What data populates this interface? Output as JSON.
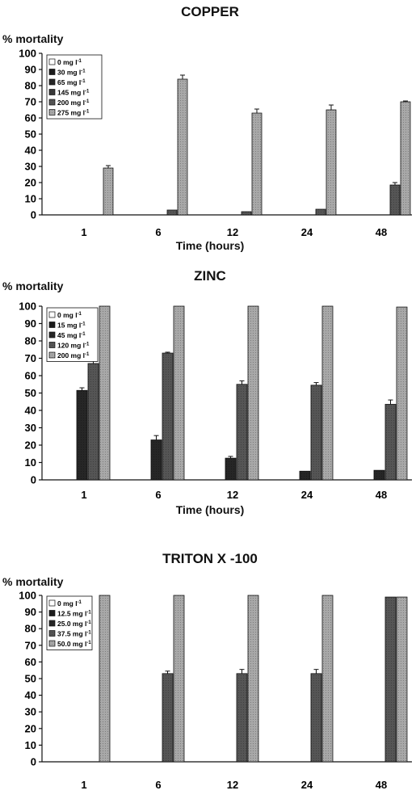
{
  "chart_data": [
    {
      "type": "bar",
      "title": "COPPER",
      "ylabel": "% mortality",
      "xlabel": "Time (hours)",
      "ylim": [
        0,
        100
      ],
      "yticks": [
        0,
        10,
        20,
        30,
        40,
        50,
        60,
        70,
        80,
        90,
        100
      ],
      "categories": [
        "1",
        "6",
        "12",
        "24",
        "48"
      ],
      "legend_position": "top-left",
      "series": [
        {
          "name": "0 mg l-1",
          "legend_label": "0 mg l",
          "sup": "-1",
          "color": "#ffffff",
          "values": [
            0,
            0,
            0,
            0,
            0
          ],
          "errors": [
            0,
            0,
            0,
            0,
            0
          ]
        },
        {
          "name": "30 mg l-1",
          "legend_label": "30 mg l",
          "sup": "-1",
          "color": "#1a1a1a",
          "values": [
            0,
            0,
            0,
            0,
            0
          ],
          "errors": [
            0,
            0,
            0,
            0,
            0
          ]
        },
        {
          "name": "65 mg l-1",
          "legend_label": "65 mg l",
          "sup": "-1",
          "color": "#262626",
          "values": [
            0,
            0,
            0,
            0,
            0
          ],
          "errors": [
            0,
            0,
            0,
            0,
            0
          ]
        },
        {
          "name": "145 mg l-1",
          "legend_label": "145 mg l",
          "sup": "-1",
          "color": "#3a3a3a",
          "values": [
            0,
            0,
            0,
            0,
            0
          ],
          "errors": [
            0,
            0,
            0,
            0,
            0
          ]
        },
        {
          "name": "200 mg l-1",
          "legend_label": "200 mg l",
          "sup": "-1",
          "color": "#555555",
          "values": [
            0,
            3,
            2,
            3.5,
            18.5
          ],
          "errors": [
            0,
            0,
            0,
            0,
            1.5
          ]
        },
        {
          "name": "275 mg l-1",
          "legend_label": "275 mg l",
          "sup": "-1",
          "color": "#a8a8a8",
          "values": [
            29,
            84,
            63,
            65,
            70
          ],
          "errors": [
            1.5,
            2.5,
            2.5,
            3,
            0.5
          ]
        }
      ]
    },
    {
      "type": "bar",
      "title": "ZINC",
      "ylabel": "% mortality",
      "xlabel": "Time (hours)",
      "ylim": [
        0,
        100
      ],
      "yticks": [
        0,
        10,
        20,
        30,
        40,
        50,
        60,
        70,
        80,
        90,
        100
      ],
      "categories": [
        "1",
        "6",
        "12",
        "24",
        "48"
      ],
      "legend_position": "top-left",
      "series": [
        {
          "name": "0 mg l-1",
          "legend_label": "0 mg l",
          "sup": "-1",
          "color": "#ffffff",
          "values": [
            0,
            0,
            0,
            0,
            0
          ],
          "errors": [
            0,
            0,
            0,
            0,
            0
          ]
        },
        {
          "name": "15 mg l-1",
          "legend_label": "15 mg l",
          "sup": "-1",
          "color": "#1a1a1a",
          "values": [
            0,
            0,
            0,
            0,
            0
          ],
          "errors": [
            0,
            0,
            0,
            0,
            0
          ]
        },
        {
          "name": "45 mg l-1",
          "legend_label": "45 mg l",
          "sup": "-1",
          "color": "#262626",
          "values": [
            51.5,
            23,
            12.5,
            5,
            5.5
          ],
          "errors": [
            1.5,
            2.5,
            1,
            0,
            0
          ]
        },
        {
          "name": "120 mg l-1",
          "legend_label": "120 mg l",
          "sup": "-1",
          "color": "#555555",
          "values": [
            67,
            73,
            55,
            54.5,
            43.5
          ],
          "errors": [
            2,
            0.5,
            2,
            1.5,
            2.5
          ]
        },
        {
          "name": "200 mg l-1",
          "legend_label": "200 mg l",
          "sup": "-1",
          "color": "#a8a8a8",
          "values": [
            100,
            100,
            100,
            100,
            99.5
          ],
          "errors": [
            0,
            0,
            0,
            0,
            0
          ]
        }
      ]
    },
    {
      "type": "bar",
      "title": "TRITON X -100",
      "ylabel": "% mortality",
      "xlabel": "",
      "ylim": [
        0,
        100
      ],
      "yticks": [
        0,
        10,
        20,
        30,
        40,
        50,
        60,
        70,
        80,
        90,
        100
      ],
      "categories": [
        "1",
        "6",
        "12",
        "24",
        "48"
      ],
      "legend_position": "top-left",
      "series": [
        {
          "name": "0 mg l-1",
          "legend_label": "0 mg l",
          "sup": "-1",
          "color": "#ffffff",
          "values": [
            0,
            0,
            0,
            0,
            0
          ],
          "errors": [
            0,
            0,
            0,
            0,
            0
          ]
        },
        {
          "name": "12.5 mg l-1",
          "legend_label": "12.5 mg l",
          "sup": "-1",
          "color": "#1a1a1a",
          "values": [
            0,
            0,
            0,
            0,
            0
          ],
          "errors": [
            0,
            0,
            0,
            0,
            0
          ]
        },
        {
          "name": "25.0 mg l-1",
          "legend_label": "25.0 mg l",
          "sup": "-1",
          "color": "#262626",
          "values": [
            0,
            0,
            0,
            0,
            0
          ],
          "errors": [
            0,
            0,
            0,
            0,
            0
          ]
        },
        {
          "name": "37.5 mg l-1",
          "legend_label": "37.5 mg l",
          "sup": "-1",
          "color": "#555555",
          "values": [
            0,
            53,
            53,
            53,
            99
          ],
          "errors": [
            0,
            1.5,
            2.5,
            2.5,
            0
          ]
        },
        {
          "name": "50.0 mg l-1",
          "legend_label": "50.0 mg l",
          "sup": "-1",
          "color": "#a8a8a8",
          "values": [
            100,
            100,
            100,
            100,
            99
          ],
          "errors": [
            0,
            0,
            0,
            0,
            0
          ]
        }
      ]
    }
  ]
}
